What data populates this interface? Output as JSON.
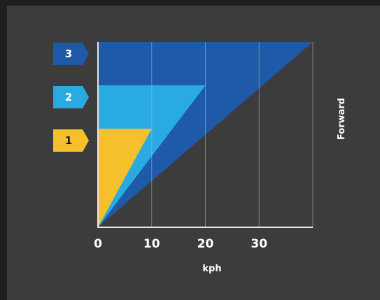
{
  "colors": {
    "background": "#3c3c3c",
    "border": "#1f1f1f",
    "axis": "#e6e6e6",
    "gridline": "#b5b5b5",
    "text": "#ffffff"
  },
  "chart_data": {
    "type": "area",
    "title": "",
    "xlabel": "kph",
    "ylabel": "Forward",
    "xlim": [
      0,
      40
    ],
    "x_ticks": [
      "0",
      "10",
      "20",
      "30"
    ],
    "x_tick_values": [
      0,
      10,
      20,
      30
    ],
    "grid": "vertical",
    "series": [
      {
        "name": "3",
        "color": "#1e5aa8",
        "label_color": "#ffffff",
        "max_speed_kph": 40
      },
      {
        "name": "2",
        "color": "#29abe2",
        "label_color": "#ffffff",
        "max_speed_kph": 20
      },
      {
        "name": "1",
        "color": "#f6c02c",
        "label_color": "#1a1a1a",
        "max_speed_kph": 10
      }
    ]
  }
}
